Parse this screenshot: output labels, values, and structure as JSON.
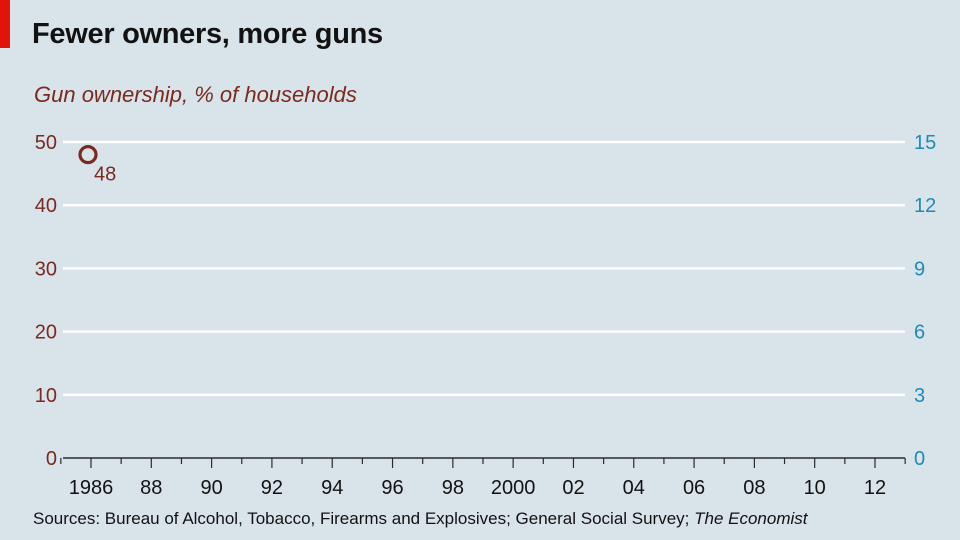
{
  "title": "Fewer owners, more guns",
  "subtitle": "Gun ownership, % of households",
  "source": {
    "text": "Sources: Bureau of Alcohol, Tobacco, Firearms and Explosives; General Social Survey; ",
    "italic": "The Economist"
  },
  "colors": {
    "background": "#d9e3ea",
    "left_axis": "#7a2a1e",
    "right_axis": "#1f8bb5",
    "grid": "#ffffff",
    "brand_tag": "#e3120b"
  },
  "chart_data": {
    "type": "line",
    "x_tick_labels": [
      "1986",
      "88",
      "90",
      "92",
      "94",
      "96",
      "98",
      "2000",
      "02",
      "04",
      "06",
      "08",
      "10",
      "12"
    ],
    "xlim": [
      1985,
      2014
    ],
    "y_left": {
      "ylim": [
        0,
        50
      ],
      "ticks": [
        0,
        10,
        20,
        30,
        40,
        50
      ]
    },
    "y_right": {
      "ylim": [
        0,
        15
      ],
      "ticks": [
        0,
        3,
        6,
        9,
        12,
        15
      ]
    },
    "grid": true,
    "series": [
      {
        "axis": "left",
        "points": [
          {
            "x": 1986,
            "y": 48,
            "label": "48"
          }
        ]
      }
    ]
  }
}
